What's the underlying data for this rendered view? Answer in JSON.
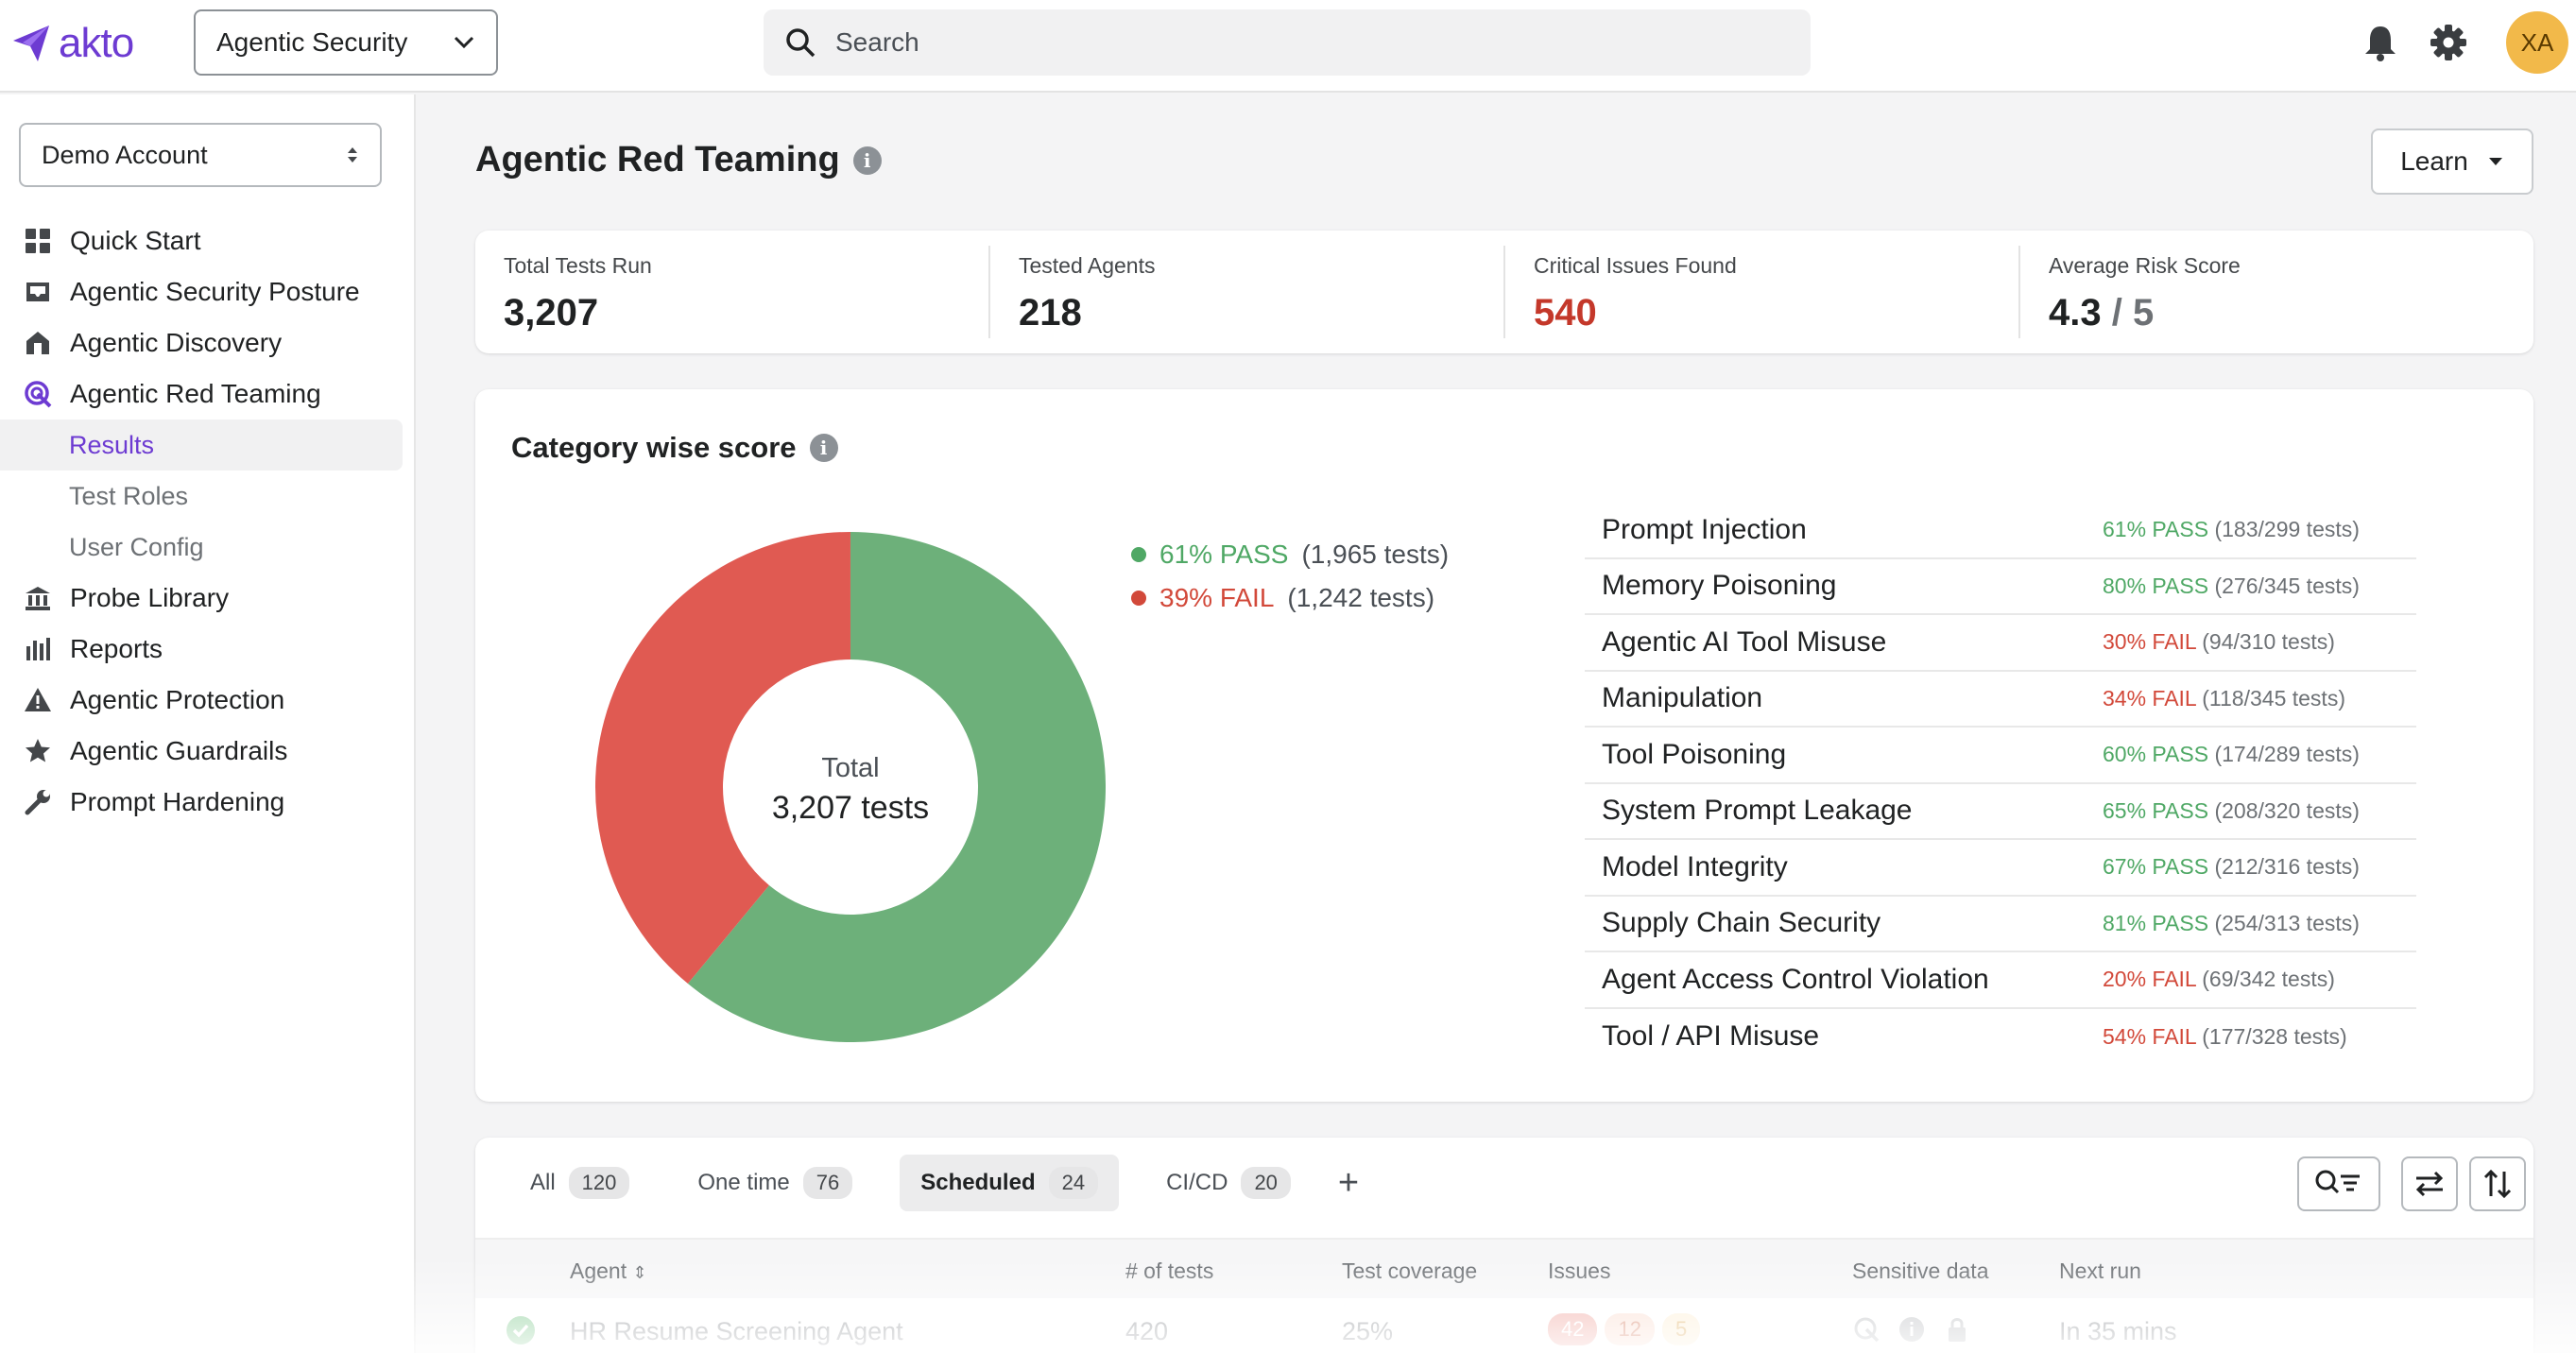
{
  "header": {
    "logo_text": "akto",
    "product_selector": "Agentic Security",
    "search_placeholder": "Search",
    "avatar_initials": "XA",
    "brand_color": "#6d3bd2"
  },
  "sidebar": {
    "account_selector": "Demo Account",
    "items": [
      {
        "label": "Quick Start",
        "icon": "grid-icon"
      },
      {
        "label": "Agentic Security Posture",
        "icon": "inbox-icon"
      },
      {
        "label": "Agentic Discovery",
        "icon": "house-icon"
      },
      {
        "label": "Agentic Red Teaming",
        "icon": "target-icon"
      },
      {
        "label": "Probe Library",
        "icon": "bank-icon"
      },
      {
        "label": "Reports",
        "icon": "bar-chart-icon"
      },
      {
        "label": "Agentic Protection",
        "icon": "warning-icon"
      },
      {
        "label": "Agentic Guardrails",
        "icon": "star-icon"
      },
      {
        "label": "Prompt Hardening",
        "icon": "wrench-icon"
      }
    ],
    "subitems": [
      "Results",
      "Test Roles",
      "User Config"
    ]
  },
  "page": {
    "title": "Agentic Red Teaming",
    "learn_label": "Learn"
  },
  "stats": [
    {
      "label": "Total Tests Run",
      "value": "3,207"
    },
    {
      "label": "Tested Agents",
      "value": "218"
    },
    {
      "label": "Critical Issues Found",
      "value": "540"
    },
    {
      "label": "Average Risk Score",
      "value": "4.3",
      "suffix": "/ 5"
    }
  ],
  "category": {
    "title": "Category wise score",
    "donut_center_label": "Total",
    "donut_center_value": "3,207 tests",
    "pass_fraction": 0.61,
    "fail_fraction": 0.39,
    "pass_color": "#6db07a",
    "fail_color": "#e05a52",
    "legend": [
      {
        "pct": "61% PASS",
        "count": "(1,965 tests)"
      },
      {
        "pct": "39% FAIL",
        "count": "(1,242 tests)"
      }
    ],
    "rows": [
      {
        "name": "Prompt Injection",
        "result": "61% PASS",
        "status": "pass",
        "detail": "(183/299 tests)"
      },
      {
        "name": "Memory Poisoning",
        "result": "80% PASS",
        "status": "pass",
        "detail": "(276/345 tests)"
      },
      {
        "name": "Agentic AI Tool Misuse",
        "result": "30% FAIL",
        "status": "fail",
        "detail": "(94/310 tests)"
      },
      {
        "name": "Manipulation",
        "result": "34% FAIL",
        "status": "fail",
        "detail": "(118/345 tests)"
      },
      {
        "name": "Tool Poisoning",
        "result": "60% PASS",
        "status": "pass",
        "detail": "(174/289 tests)"
      },
      {
        "name": "System Prompt Leakage",
        "result": "65% PASS",
        "status": "pass",
        "detail": "(208/320 tests)"
      },
      {
        "name": "Model Integrity",
        "result": "67% PASS",
        "status": "pass",
        "detail": "(212/316 tests)"
      },
      {
        "name": "Supply Chain Security",
        "result": "81% PASS",
        "status": "pass",
        "detail": "(254/313 tests)"
      },
      {
        "name": "Agent Access Control Violation",
        "result": "20% FAIL",
        "status": "fail",
        "detail": "(69/342 tests)"
      },
      {
        "name": "Tool / API Misuse",
        "result": "54% FAIL",
        "status": "fail",
        "detail": "(177/328 tests)"
      }
    ]
  },
  "tests": {
    "tabs": [
      {
        "label": "All",
        "count": "120"
      },
      {
        "label": "One time",
        "count": "76"
      },
      {
        "label": "Scheduled",
        "count": "24"
      },
      {
        "label": "CI/CD",
        "count": "20"
      }
    ],
    "columns": [
      "Agent",
      "# of tests",
      "Test coverage",
      "Issues",
      "Sensitive data",
      "Next run"
    ],
    "rows": [
      {
        "agent": "HR Resume Screening Agent",
        "tests": "420",
        "coverage": "25%",
        "issues": [
          "42",
          "12",
          "5"
        ],
        "next_run": "In 35 mins"
      }
    ]
  }
}
